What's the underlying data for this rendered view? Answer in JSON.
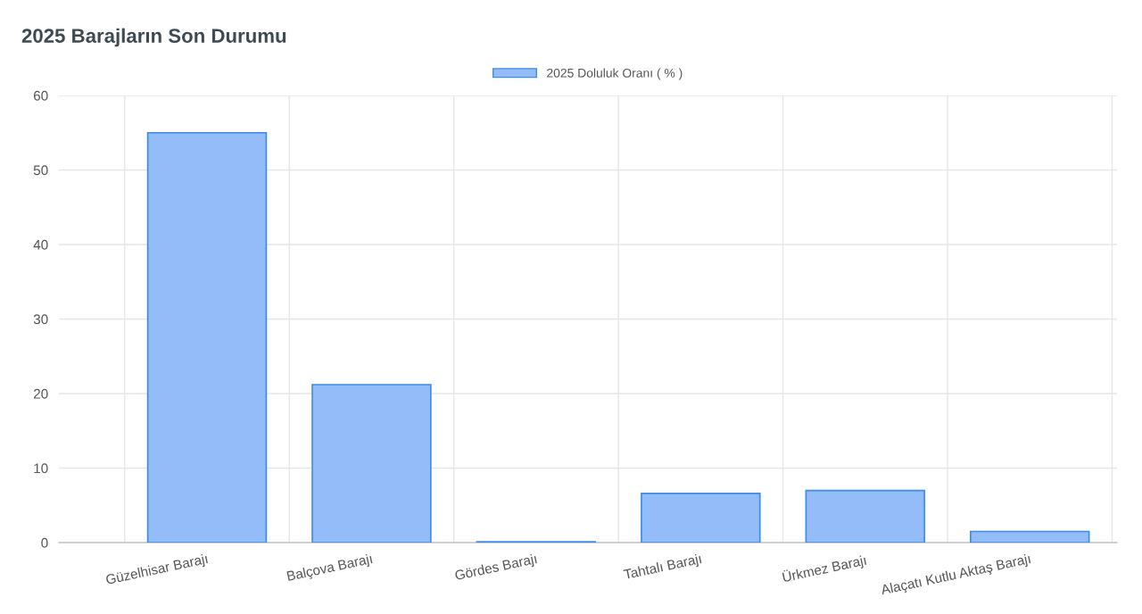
{
  "chart_data": {
    "type": "bar",
    "title": "2025 Barajların Son Durumu",
    "categories": [
      "Güzelhisar Barajı",
      "Balçova Barajı",
      "Gördes Barajı",
      "Tahtalı Barajı",
      "Ürkmez Barajı",
      "Alaçatı Kutlu Aktaş Barajı"
    ],
    "series": [
      {
        "name": "2025 Doluluk Oranı ( % )",
        "color": "#93bcf9",
        "values": [
          55,
          21.2,
          0.1,
          6.6,
          7.0,
          1.5
        ]
      }
    ],
    "ylim": [
      0,
      60
    ],
    "yticks": [
      0,
      10,
      20,
      30,
      40,
      50,
      60
    ],
    "grid": true,
    "legend": "top"
  }
}
